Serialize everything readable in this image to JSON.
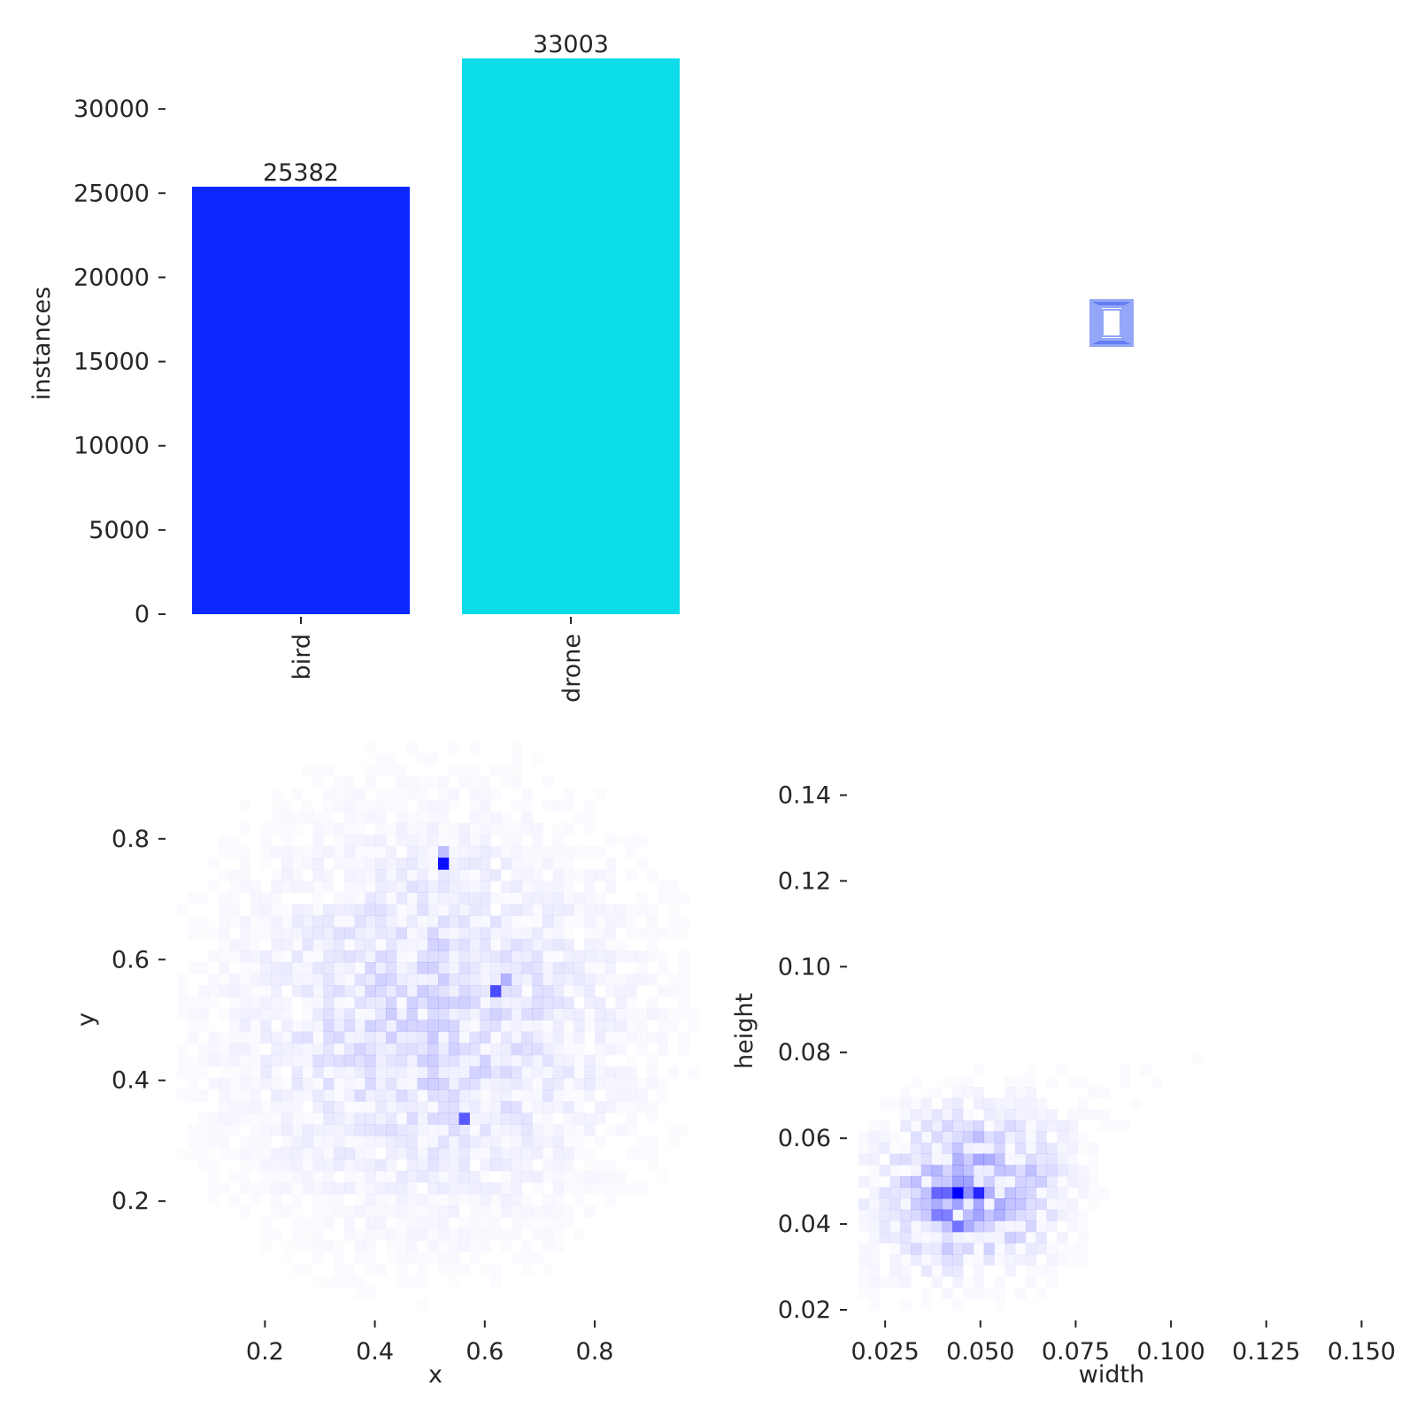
{
  "chart_data": [
    {
      "type": "bar",
      "categories": [
        "bird",
        "drone"
      ],
      "values": [
        25382,
        33003
      ],
      "value_labels": [
        "25382",
        "33003"
      ],
      "colors": [
        "#0a28ff",
        "#0cdce8"
      ],
      "xlabel": "",
      "ylabel": "instances",
      "ylim": [
        0,
        33003
      ],
      "yticks": [
        0,
        5000,
        10000,
        15000,
        20000,
        25000,
        30000
      ],
      "ytick_labels": [
        "0",
        "5000",
        "10000",
        "15000",
        "20000",
        "25000",
        "30000"
      ],
      "grid": false
    },
    {
      "type": "other",
      "description_free": true,
      "box_color": "#3d5cf0",
      "boxes": [
        {
          "w": 0.048,
          "h": 0.052
        },
        {
          "w": 0.044,
          "h": 0.048
        },
        {
          "w": 0.04,
          "h": 0.046
        },
        {
          "w": 0.036,
          "h": 0.044
        },
        {
          "w": 0.032,
          "h": 0.042
        },
        {
          "w": 0.028,
          "h": 0.04
        },
        {
          "w": 0.024,
          "h": 0.036
        },
        {
          "w": 0.02,
          "h": 0.03
        }
      ]
    },
    {
      "type": "heatmap",
      "xlabel": "x",
      "ylabel": "y",
      "xlim": [
        0.04,
        0.99
      ],
      "ylim": [
        0.02,
        0.98
      ],
      "xticks": [
        0.2,
        0.4,
        0.6,
        0.8
      ],
      "xtick_labels": [
        "0.2",
        "0.4",
        "0.6",
        "0.8"
      ],
      "yticks": [
        0.2,
        0.4,
        0.6,
        0.8
      ],
      "ytick_labels": [
        "0.2",
        "0.4",
        "0.6",
        "0.8"
      ],
      "color": "#0000ff",
      "hotspots": [
        {
          "x": 0.53,
          "y": 0.755,
          "density": 0.95
        },
        {
          "x": 0.625,
          "y": 0.55,
          "density": 0.7
        },
        {
          "x": 0.57,
          "y": 0.34,
          "density": 0.65
        },
        {
          "x": 0.525,
          "y": 0.775,
          "density": 0.25
        },
        {
          "x": 0.64,
          "y": 0.565,
          "density": 0.3
        }
      ],
      "center": {
        "x": 0.5,
        "y": 0.5
      },
      "spread": {
        "x": 0.22,
        "y": 0.2
      }
    },
    {
      "type": "heatmap",
      "xlabel": "width",
      "ylabel": "height",
      "xlim": [
        0.018,
        0.155
      ],
      "ylim": [
        0.02,
        0.15
      ],
      "xticks": [
        0.025,
        0.05,
        0.075,
        0.1,
        0.125,
        0.15
      ],
      "xtick_labels": [
        "0.025",
        "0.050",
        "0.075",
        "0.100",
        "0.125",
        "0.150"
      ],
      "yticks": [
        0.02,
        0.04,
        0.06,
        0.08,
        0.1,
        0.12,
        0.14
      ],
      "ytick_labels": [
        "0.02",
        "0.04",
        "0.06",
        "0.08",
        "0.10",
        "0.12",
        "0.14"
      ],
      "color": "#0000ff",
      "hotspots": [
        {
          "x": 0.045,
          "y": 0.048,
          "density": 1.0
        },
        {
          "x": 0.05,
          "y": 0.048,
          "density": 0.85
        },
        {
          "x": 0.04,
          "y": 0.048,
          "density": 0.6
        },
        {
          "x": 0.045,
          "y": 0.04,
          "density": 0.55
        },
        {
          "x": 0.04,
          "y": 0.042,
          "density": 0.5
        },
        {
          "x": 0.05,
          "y": 0.055,
          "density": 0.35
        },
        {
          "x": 0.045,
          "y": 0.055,
          "density": 0.3
        }
      ]
    }
  ]
}
